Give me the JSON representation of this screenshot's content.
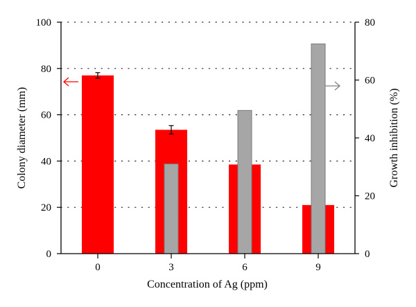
{
  "chart_data": {
    "type": "bar",
    "categories": [
      "0",
      "3",
      "6",
      "9"
    ],
    "xlabel": "Concentration of Ag (ppm)",
    "ylabel_left": "Colony diameter (mm)",
    "ylabel_right": "Growth inhibition (%)",
    "ylim_left": [
      0,
      100
    ],
    "ylim_right": [
      0,
      80
    ],
    "yticks_left": [
      0,
      20,
      40,
      60,
      80,
      100
    ],
    "yticks_right": [
      0,
      20,
      40,
      60,
      80
    ],
    "grid": "horizontal dotted",
    "series": [
      {
        "axis": "left",
        "color": "#ff0000",
        "values": [
          77,
          53.5,
          38.5,
          21
        ],
        "errors": [
          1.2,
          1.8,
          null,
          null
        ]
      },
      {
        "axis": "right",
        "color": "#a6a6a6",
        "values": [
          null,
          31,
          49.5,
          72.5
        ]
      }
    ],
    "annotations": [
      {
        "type": "arrow",
        "direction": "left",
        "color": "#ff0000",
        "points_to_axis": "left"
      },
      {
        "type": "arrow",
        "direction": "right",
        "color": "#808080",
        "points_to_axis": "right"
      }
    ]
  }
}
